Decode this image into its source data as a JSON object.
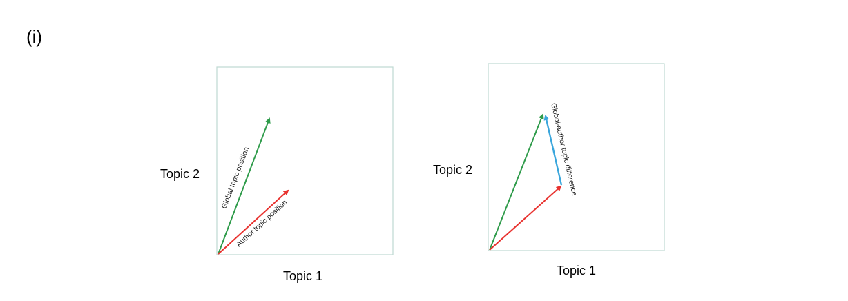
{
  "panel_label": "(i)",
  "left_diagram": {
    "y_axis_label": "Topic 2",
    "x_axis_label": "Topic 1",
    "global_vector_label": "Global topic position",
    "author_vector_label": "Author topic position"
  },
  "right_diagram": {
    "y_axis_label": "Topic 2",
    "x_axis_label": "Topic 1",
    "difference_vector_label": "Global-author topic difference"
  },
  "colors": {
    "global": "#2e9b4a",
    "author": "#e8322f",
    "difference": "#3aa6dc",
    "box": "#bfd9d2"
  }
}
